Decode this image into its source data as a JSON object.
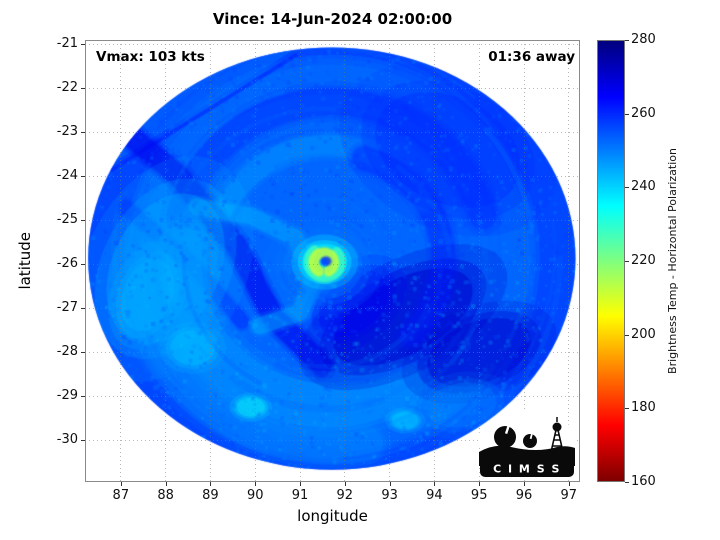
{
  "chart_data": {
    "type": "heatmap",
    "title": "Vince: 14-Jun-2024 02:00:00",
    "xlabel": "longitude",
    "ylabel": "latitude",
    "xlim": [
      86.2,
      97.25
    ],
    "ylim": [
      -30.95,
      -20.9
    ],
    "xticks": [
      87,
      88,
      89,
      90,
      91,
      92,
      93,
      94,
      95,
      96,
      97
    ],
    "yticks": [
      -21,
      -22,
      -23,
      -24,
      -25,
      -26,
      -27,
      -28,
      -29,
      -30
    ],
    "grid": true,
    "annotations": [
      "Vmax: 103 kts",
      "01:36 away"
    ],
    "colorbar": {
      "label": "Brightness Temp - Horizontal Polarization",
      "range": [
        160,
        280
      ],
      "ticks": [
        280,
        260,
        240,
        220,
        200,
        180,
        160
      ],
      "colormap": "jet-reversed",
      "colormap_stops": [
        {
          "value": 160,
          "color": "#800000"
        },
        {
          "value": 180,
          "color": "#ff2b00"
        },
        {
          "value": 200,
          "color": "#ffd500"
        },
        {
          "value": 220,
          "color": "#80ff80"
        },
        {
          "value": 240,
          "color": "#00d5ff"
        },
        {
          "value": 260,
          "color": "#002bff"
        },
        {
          "value": 280,
          "color": "#000080"
        }
      ]
    },
    "storm": {
      "name": "Vince",
      "valid_time": "14-Jun-2024 02:00:00",
      "vmax_kts": 103,
      "obs_offset": "01:36 away",
      "eye": {
        "lon": 91.55,
        "lat": -25.95
      },
      "swath": {
        "center_lon": 91.71,
        "center_lat": -25.87,
        "radius_lon_deg": 5.44,
        "radius_lat_deg": 4.8
      },
      "base_temp_K": 253
    },
    "features": [
      {
        "name": "swath-edge-ring",
        "type": "ring",
        "lon": 91.71,
        "lat": -25.87,
        "r": 5.1,
        "w": 0.9,
        "temp": 261,
        "alpha": 0.4
      },
      {
        "name": "nw-lighter-sector",
        "type": "poly",
        "pts": [
          [
            86.5,
            -23.9
          ],
          [
            90.9,
            -21.1
          ],
          [
            86.5,
            -21.0
          ]
        ],
        "temp": 252,
        "alpha": 0.5
      },
      {
        "name": "nw-swath-seam",
        "type": "band",
        "pts": [
          [
            86.8,
            -23.85
          ],
          [
            90.9,
            -21.25
          ]
        ],
        "w": 0.07,
        "temp": 262,
        "alpha": 0.5
      },
      {
        "name": "north-dark-arc",
        "type": "arc",
        "lon": 91.7,
        "lat": -25.8,
        "r": 3.5,
        "a0": 195,
        "a1": 345,
        "w": 0.6,
        "temp": 260,
        "alpha": 0.45
      },
      {
        "name": "north-inner-cyan-arc",
        "type": "arc",
        "lon": 91.6,
        "lat": -25.8,
        "r": 2.5,
        "a0": 200,
        "a1": 330,
        "w": 0.45,
        "temp": 247,
        "alpha": 0.5
      },
      {
        "name": "ne-dark-region",
        "type": "ellipse",
        "lon": 94.3,
        "lat": -23.4,
        "rx": 1.7,
        "ry": 1.2,
        "rot": 25,
        "temp": 261,
        "alpha": 0.5
      },
      {
        "name": "nw-dark-band",
        "type": "band",
        "pts": [
          [
            87.0,
            -22.9
          ],
          [
            88.3,
            -24.0
          ],
          [
            89.6,
            -25.6
          ],
          [
            90.4,
            -27.2
          ],
          [
            91.5,
            -28.3
          ]
        ],
        "w": 0.45,
        "temp": 267,
        "alpha": 0.65
      },
      {
        "name": "nw-dark-band-2",
        "type": "band",
        "pts": [
          [
            87.1,
            -24.7
          ],
          [
            88.5,
            -25.9
          ],
          [
            89.7,
            -27.3
          ]
        ],
        "w": 0.3,
        "temp": 262,
        "alpha": 0.4
      },
      {
        "name": "west-cyan-region",
        "type": "ellipse",
        "lon": 88.0,
        "lat": -26.1,
        "rx": 1.2,
        "ry": 1.8,
        "rot": 25,
        "temp": 243,
        "alpha": 0.5
      },
      {
        "name": "west-cyan-bright",
        "type": "ellipse",
        "lon": 87.6,
        "lat": -26.7,
        "rx": 0.55,
        "ry": 0.85,
        "rot": 20,
        "temp": 239,
        "alpha": 0.45
      },
      {
        "name": "south-cyan-arc",
        "type": "arc",
        "lon": 91.6,
        "lat": -25.9,
        "r": 3.3,
        "a0": 60,
        "a1": 185,
        "w": 1.0,
        "temp": 246,
        "alpha": 0.5
      },
      {
        "name": "south-outer-cyan-arc",
        "type": "arc",
        "lon": 91.7,
        "lat": -25.85,
        "r": 4.3,
        "a0": 80,
        "a1": 180,
        "w": 0.8,
        "temp": 248,
        "alpha": 0.4
      },
      {
        "name": "se-dark-patch",
        "type": "ellipse",
        "lon": 93.3,
        "lat": -27.2,
        "rx": 1.7,
        "ry": 0.85,
        "rot": -28,
        "temp": 271,
        "alpha": 0.8
      },
      {
        "name": "se-dark-patch-2",
        "type": "ellipse",
        "lon": 95.0,
        "lat": -28.0,
        "rx": 1.2,
        "ry": 0.7,
        "rot": -20,
        "temp": 271,
        "alpha": 0.7
      },
      {
        "name": "se-dark-connector",
        "type": "ellipse",
        "lon": 92.2,
        "lat": -26.9,
        "rx": 0.9,
        "ry": 0.6,
        "rot": -40,
        "temp": 266,
        "alpha": 0.55
      },
      {
        "name": "east-dark-arc",
        "type": "arc",
        "lon": 91.8,
        "lat": -25.9,
        "r": 2.4,
        "a0": -75,
        "a1": 45,
        "w": 0.5,
        "temp": 262,
        "alpha": 0.4
      },
      {
        "name": "inner-spiral-cyan",
        "type": "band",
        "pts": [
          [
            88.7,
            -24.7
          ],
          [
            89.9,
            -24.9
          ],
          [
            90.9,
            -25.4
          ],
          [
            91.3,
            -26.3
          ],
          [
            91.0,
            -27.1
          ],
          [
            90.1,
            -27.4
          ]
        ],
        "w": 0.35,
        "temp": 244,
        "alpha": 0.5
      },
      {
        "name": "moat",
        "type": "ellipse",
        "lon": 91.5,
        "lat": -26.05,
        "rx": 0.9,
        "ry": 0.75,
        "rot": 0,
        "temp": 250,
        "alpha": 0.5
      },
      {
        "name": "sw-texture-zone",
        "type": "ellipse",
        "lon": 88.6,
        "lat": -27.9,
        "rx": 0.5,
        "ry": 0.4,
        "rot": 0,
        "temp": 241,
        "alpha": 0.5
      },
      {
        "name": "south-green-spot",
        "type": "ellipse",
        "lon": 89.9,
        "lat": -29.25,
        "rx": 0.32,
        "ry": 0.22,
        "rot": 0,
        "temp": 234,
        "alpha": 0.55
      },
      {
        "name": "south-green-spot-2",
        "type": "ellipse",
        "lon": 93.35,
        "lat": -29.55,
        "rx": 0.3,
        "ry": 0.2,
        "rot": 0,
        "temp": 237,
        "alpha": 0.5
      },
      {
        "name": "se-bottom-cyan",
        "type": "ellipse",
        "lon": 94.6,
        "lat": -29.2,
        "rx": 0.8,
        "ry": 0.5,
        "rot": -10,
        "temp": 247,
        "alpha": 0.4
      },
      {
        "name": "eyewall-cyan",
        "layer": "top",
        "type": "ellipse",
        "lon": 91.55,
        "lat": -25.95,
        "rx": 0.5,
        "ry": 0.42,
        "rot": 0,
        "temp": 236,
        "alpha": 0.85
      },
      {
        "name": "eyewall-green-ring",
        "layer": "top",
        "type": "arc",
        "lon": 91.55,
        "lat": -25.95,
        "r": 0.36,
        "a0": -40,
        "a1": 230,
        "w": 0.18,
        "temp": 227,
        "alpha": 0.8
      },
      {
        "name": "eye-yellow-arc",
        "layer": "top",
        "type": "arc",
        "lon": 91.53,
        "lat": -25.96,
        "r": 0.22,
        "a0": 120,
        "a1": 420,
        "w": 0.2,
        "temp": 211,
        "alpha": 0.95
      },
      {
        "name": "eye-center-dark-dot",
        "layer": "top",
        "type": "ellipse",
        "lon": 91.58,
        "lat": -25.93,
        "rx": 0.1,
        "ry": 0.09,
        "rot": 0,
        "temp": 261,
        "alpha": 0.85
      }
    ]
  },
  "logo": {
    "text": "C I M S S"
  }
}
